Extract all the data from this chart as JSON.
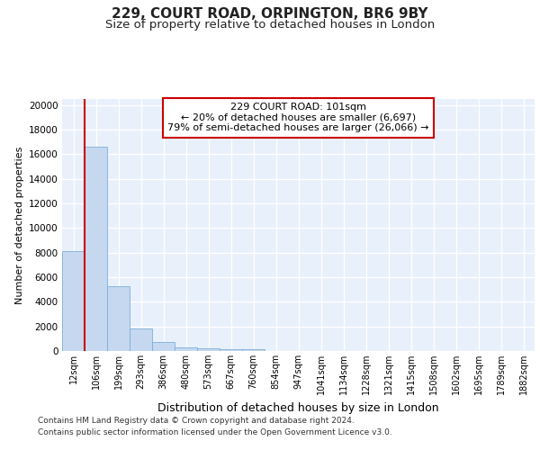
{
  "title1": "229, COURT ROAD, ORPINGTON, BR6 9BY",
  "title2": "Size of property relative to detached houses in London",
  "xlabel": "Distribution of detached houses by size in London",
  "ylabel": "Number of detached properties",
  "categories": [
    "12sqm",
    "106sqm",
    "199sqm",
    "293sqm",
    "386sqm",
    "480sqm",
    "573sqm",
    "667sqm",
    "760sqm",
    "854sqm",
    "947sqm",
    "1041sqm",
    "1134sqm",
    "1228sqm",
    "1321sqm",
    "1415sqm",
    "1508sqm",
    "1602sqm",
    "1695sqm",
    "1789sqm",
    "1882sqm"
  ],
  "values": [
    8100,
    16600,
    5300,
    1850,
    720,
    310,
    210,
    170,
    135,
    0,
    0,
    0,
    0,
    0,
    0,
    0,
    0,
    0,
    0,
    0,
    0
  ],
  "bar_color": "#c5d8f0",
  "bar_edge_color": "#7fafd6",
  "annotation_text": "229 COURT ROAD: 101sqm\n← 20% of detached houses are smaller (6,697)\n79% of semi-detached houses are larger (26,066) →",
  "vline_color": "#cc0000",
  "box_color": "#cc0000",
  "ylim": [
    0,
    20500
  ],
  "yticks": [
    0,
    2000,
    4000,
    6000,
    8000,
    10000,
    12000,
    14000,
    16000,
    18000,
    20000
  ],
  "footer1": "Contains HM Land Registry data © Crown copyright and database right 2024.",
  "footer2": "Contains public sector information licensed under the Open Government Licence v3.0.",
  "bg_color": "#e8f0fb",
  "grid_color": "#ffffff",
  "title1_fontsize": 11,
  "title2_fontsize": 9.5,
  "xlabel_fontsize": 9,
  "ylabel_fontsize": 8,
  "footer_fontsize": 6.5,
  "tick_fontsize": 7.5,
  "xtick_fontsize": 7
}
